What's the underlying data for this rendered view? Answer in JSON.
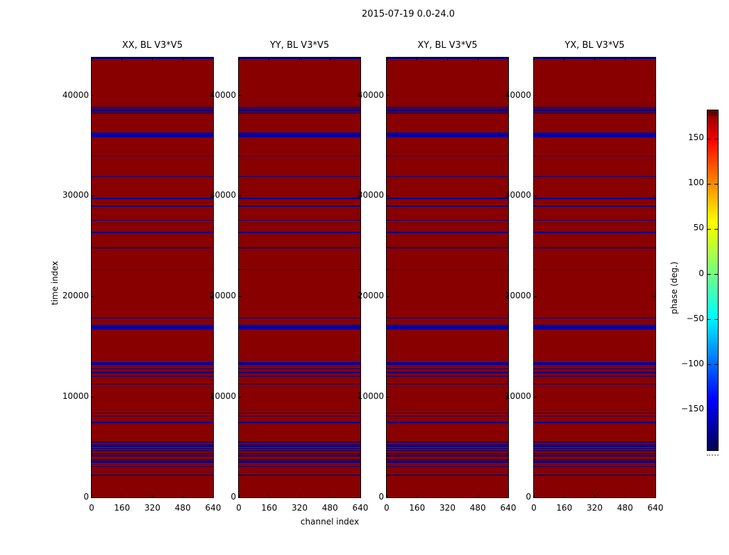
{
  "figure_title": "2015-07-19 0.0-24.0",
  "axis": {
    "xlabel": "channel index",
    "ylabel": "time index"
  },
  "panels": [
    {
      "title": "XX, BL V3*V5"
    },
    {
      "title": "YY, BL V3*V5"
    },
    {
      "title": "XY, BL V3*V5"
    },
    {
      "title": "YX, BL V3*V5"
    }
  ],
  "colors": {
    "plot_background": "#880000",
    "stripe_thin": "#000085",
    "stripe_thick": "#0000a6",
    "spine": "#000000"
  },
  "chart_data": {
    "type": "heatmap",
    "title": "2015-07-19 0.0-24.0",
    "panels": [
      "XX, BL V3*V5",
      "YY, BL V3*V5",
      "XY, BL V3*V5",
      "YX, BL V3*V5"
    ],
    "xlabel": "channel index",
    "ylabel": "time index",
    "x_range": [
      0,
      640
    ],
    "x_ticks": [
      0,
      160,
      320,
      480,
      640
    ],
    "y_range": [
      0,
      43770
    ],
    "y_ticks": [
      0,
      10000,
      20000,
      30000,
      40000
    ],
    "colorbar": {
      "label": "phase (deg.)",
      "ticks": [
        150,
        100,
        50,
        0,
        -50,
        -100,
        -150
      ],
      "range": [
        -180,
        180
      ],
      "colormap": "jet"
    },
    "background_phase_deg": 180,
    "stripe_phase_deg": -180,
    "note": "All four panels show an identical pattern: uniform +180 deg (dark red) field crossed by horizontal -180 deg (blue) stripes at these time indices",
    "stripes": [
      {
        "time": 43700,
        "px": 1.5,
        "kind": "thin"
      },
      {
        "time": 38840,
        "px": 1.4,
        "kind": "thin"
      },
      {
        "time": 38680,
        "px": 1.4,
        "kind": "thin"
      },
      {
        "time": 38520,
        "px": 1.4,
        "kind": "thin"
      },
      {
        "time": 38360,
        "px": 1.4,
        "kind": "thin"
      },
      {
        "time": 38200,
        "px": 1.4,
        "kind": "thin"
      },
      {
        "time": 36090,
        "px": 7,
        "kind": "thick"
      },
      {
        "time": 34000,
        "px": 1.4,
        "kind": "thin"
      },
      {
        "time": 31910,
        "px": 1.4,
        "kind": "thin"
      },
      {
        "time": 29750,
        "px": 1.4,
        "kind": "thin"
      },
      {
        "time": 28990,
        "px": 1.4,
        "kind": "thin"
      },
      {
        "time": 27575,
        "px": 1.4,
        "kind": "thin"
      },
      {
        "time": 26360,
        "px": 1.4,
        "kind": "thin"
      },
      {
        "time": 24865,
        "px": 1.4,
        "kind": "thin"
      },
      {
        "time": 22690,
        "px": 1.4,
        "kind": "thin"
      },
      {
        "time": 17845,
        "px": 1.4,
        "kind": "thin"
      },
      {
        "time": 16930,
        "px": 7,
        "kind": "thick"
      },
      {
        "time": 13350,
        "px": 4,
        "kind": "thick"
      },
      {
        "time": 12800,
        "px": 1.4,
        "kind": "thin"
      },
      {
        "time": 12440,
        "px": 2.5,
        "kind": "thin"
      },
      {
        "time": 12045,
        "px": 1.4,
        "kind": "thin"
      },
      {
        "time": 11290,
        "px": 1.4,
        "kind": "thin"
      },
      {
        "time": 8375,
        "px": 1.4,
        "kind": "thin"
      },
      {
        "time": 8120,
        "px": 1.4,
        "kind": "thin"
      },
      {
        "time": 7455,
        "px": 1.4,
        "kind": "thin"
      },
      {
        "time": 5525,
        "px": 1.4,
        "kind": "thin"
      },
      {
        "time": 5300,
        "px": 1.4,
        "kind": "thin"
      },
      {
        "time": 5115,
        "px": 1.4,
        "kind": "thin"
      },
      {
        "time": 4885,
        "px": 1.4,
        "kind": "thin"
      },
      {
        "time": 4680,
        "px": 1.4,
        "kind": "thin"
      },
      {
        "time": 4355,
        "px": 1.4,
        "kind": "thin"
      },
      {
        "time": 4130,
        "px": 1.4,
        "kind": "thin"
      },
      {
        "time": 3735,
        "px": 1.4,
        "kind": "thin"
      },
      {
        "time": 3530,
        "px": 1.4,
        "kind": "thin"
      },
      {
        "time": 3075,
        "px": 1.4,
        "kind": "thin"
      },
      {
        "time": 2200,
        "px": 1.4,
        "kind": "thin"
      }
    ]
  }
}
